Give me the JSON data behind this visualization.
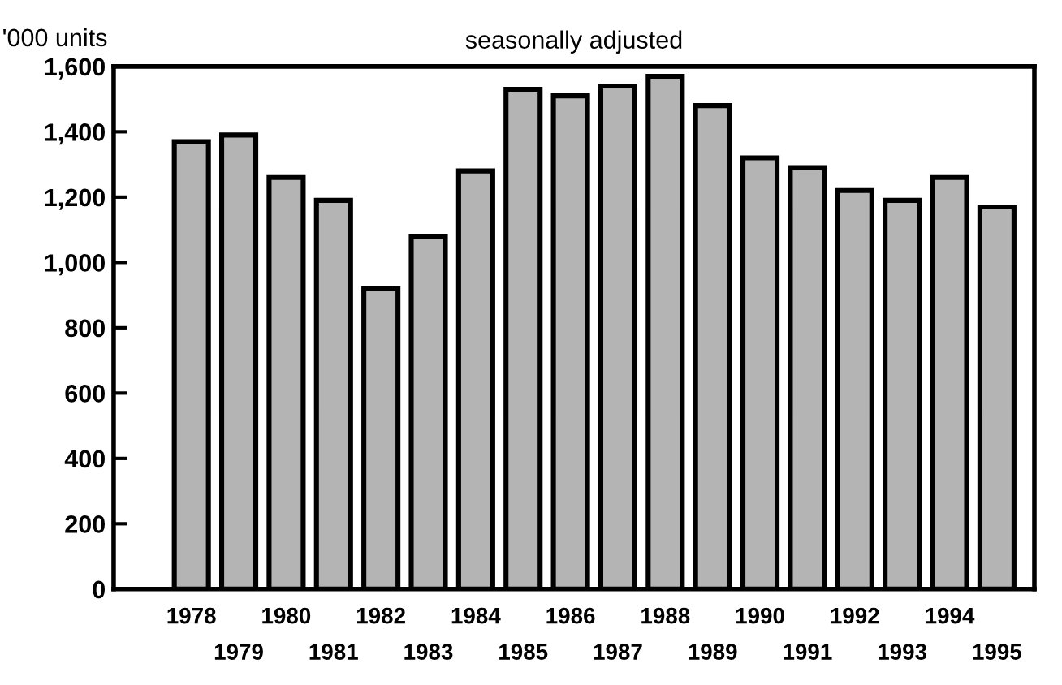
{
  "chart_data": {
    "type": "bar",
    "title": "seasonally adjusted",
    "ylabel": "'000 units",
    "categories": [
      "1978",
      "1979",
      "1980",
      "1981",
      "1982",
      "1983",
      "1984",
      "1985",
      "1986",
      "1987",
      "1988",
      "1989",
      "1990",
      "1991",
      "1992",
      "1993",
      "1994",
      "1995"
    ],
    "values": [
      1370,
      1390,
      1260,
      1190,
      920,
      1080,
      1280,
      1530,
      1510,
      1540,
      1570,
      1480,
      1320,
      1290,
      1220,
      1190,
      1260,
      1170
    ],
    "color": "#b4b4b4",
    "ylim": [
      0,
      1600
    ],
    "yticks": [
      0,
      200,
      400,
      600,
      800,
      {
        "value": 1000,
        "label": "1,000"
      },
      {
        "value": 1200,
        "label": "1,200"
      },
      {
        "value": 1400,
        "label": "1,400"
      },
      {
        "value": 1600,
        "label": "1,600"
      }
    ],
    "grid": false
  }
}
